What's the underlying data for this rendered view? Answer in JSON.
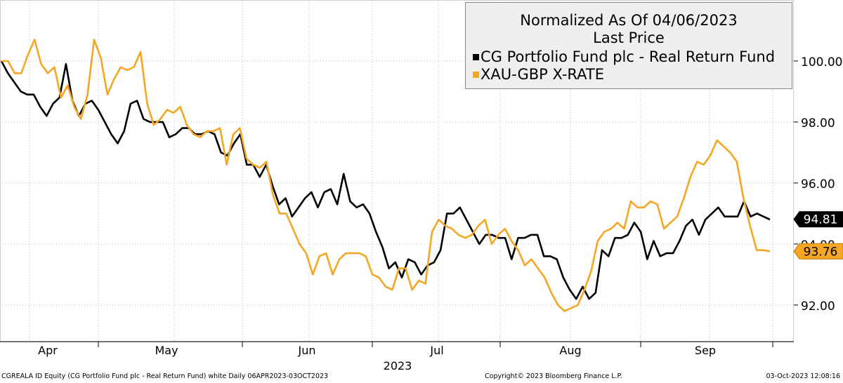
{
  "chart_data": {
    "type": "line",
    "title": "Normalized As Of 04/06/2023",
    "subtitle": "Last Price",
    "year_label": "2023",
    "x_tick_labels": [
      "Apr",
      "May",
      "Jun",
      "Jul",
      "Aug",
      "Sep"
    ],
    "y_tick_labels": [
      "100.00",
      "98.00",
      "96.00",
      "94.00",
      "92.00"
    ],
    "y_ticks": [
      100,
      98,
      96,
      94,
      92
    ],
    "ylim": [
      90.8,
      102.0
    ],
    "grid": true,
    "legend_position": "top-right",
    "series": [
      {
        "name": "CG Portfolio Fund plc - Real Return Fund",
        "color": "#000000",
        "last_label": "94.81",
        "values": [
          100.0,
          99.6,
          99.3,
          99.0,
          98.9,
          98.9,
          98.5,
          98.2,
          98.6,
          98.8,
          99.9,
          98.7,
          98.2,
          98.6,
          98.7,
          98.4,
          98.0,
          97.6,
          97.3,
          97.7,
          98.6,
          98.7,
          98.1,
          98.0,
          98.0,
          98.0,
          97.5,
          97.6,
          97.8,
          97.8,
          97.6,
          97.6,
          97.7,
          97.6,
          97.0,
          96.9,
          97.3,
          97.6,
          96.6,
          96.6,
          96.2,
          96.6,
          95.9,
          95.3,
          95.5,
          94.9,
          95.2,
          95.5,
          95.7,
          95.2,
          95.7,
          95.8,
          95.3,
          96.3,
          95.4,
          95.2,
          95.3,
          95.0,
          94.4,
          93.9,
          93.2,
          93.4,
          92.9,
          93.5,
          93.4,
          93.0,
          93.3,
          93.4,
          93.8,
          95.0,
          95.0,
          95.2,
          94.8,
          94.4,
          94.0,
          94.3,
          94.3,
          94.2,
          94.2,
          93.5,
          94.2,
          94.2,
          94.3,
          94.3,
          93.6,
          93.6,
          93.5,
          92.9,
          92.5,
          92.2,
          92.6,
          92.2,
          92.4,
          93.8,
          93.6,
          94.2,
          94.2,
          94.3,
          94.7,
          94.4,
          93.5,
          94.1,
          93.6,
          93.7,
          93.7,
          94.1,
          94.6,
          94.8,
          94.3,
          94.8,
          95.0,
          95.2,
          94.9,
          94.9,
          94.9,
          95.4,
          94.9,
          95.0,
          94.9,
          94.8
        ]
      },
      {
        "name": "XAU-GBP X-RATE",
        "color": "#f5a623",
        "last_label": "93.76",
        "values": [
          100.0,
          100.0,
          99.6,
          99.6,
          100.2,
          100.7,
          99.9,
          99.6,
          99.8,
          98.8,
          99.2,
          98.5,
          98.1,
          98.9,
          100.7,
          100.1,
          98.9,
          99.4,
          99.8,
          99.7,
          99.8,
          100.3,
          98.6,
          97.9,
          98.1,
          98.4,
          98.3,
          98.5,
          97.9,
          97.6,
          97.5,
          97.7,
          97.7,
          97.8,
          96.6,
          97.6,
          97.8,
          96.8,
          96.6,
          96.5,
          96.7,
          95.6,
          95.0,
          95.0,
          94.5,
          94.0,
          93.7,
          93.0,
          93.6,
          93.7,
          93.0,
          93.5,
          93.7,
          93.7,
          93.7,
          93.6,
          93.0,
          92.9,
          92.6,
          92.5,
          93.2,
          93.2,
          92.5,
          92.8,
          92.7,
          94.4,
          94.8,
          94.6,
          94.5,
          94.3,
          94.2,
          94.3,
          94.6,
          94.8,
          94.0,
          94.3,
          94.5,
          94.1,
          93.8,
          93.3,
          93.5,
          93.2,
          92.9,
          92.4,
          92.0,
          91.8,
          91.9,
          92.0,
          92.5,
          93.1,
          94.1,
          94.4,
          94.5,
          94.7,
          94.5,
          95.4,
          95.2,
          95.2,
          95.4,
          95.3,
          94.5,
          94.7,
          94.9,
          95.5,
          96.2,
          96.7,
          96.6,
          96.9,
          97.4,
          97.2,
          97.0,
          96.7,
          95.5,
          94.6,
          93.8,
          93.8,
          93.76
        ]
      }
    ]
  },
  "footer": {
    "left": "CGREALA ID Equity (CG Portfolio Fund plc - Real Return Fund) white  Daily 06APR2023-03OCT2023",
    "middle": "Copyright© 2023 Bloomberg Finance L.P.",
    "right": "03-Oct-2023 12:08:16"
  }
}
